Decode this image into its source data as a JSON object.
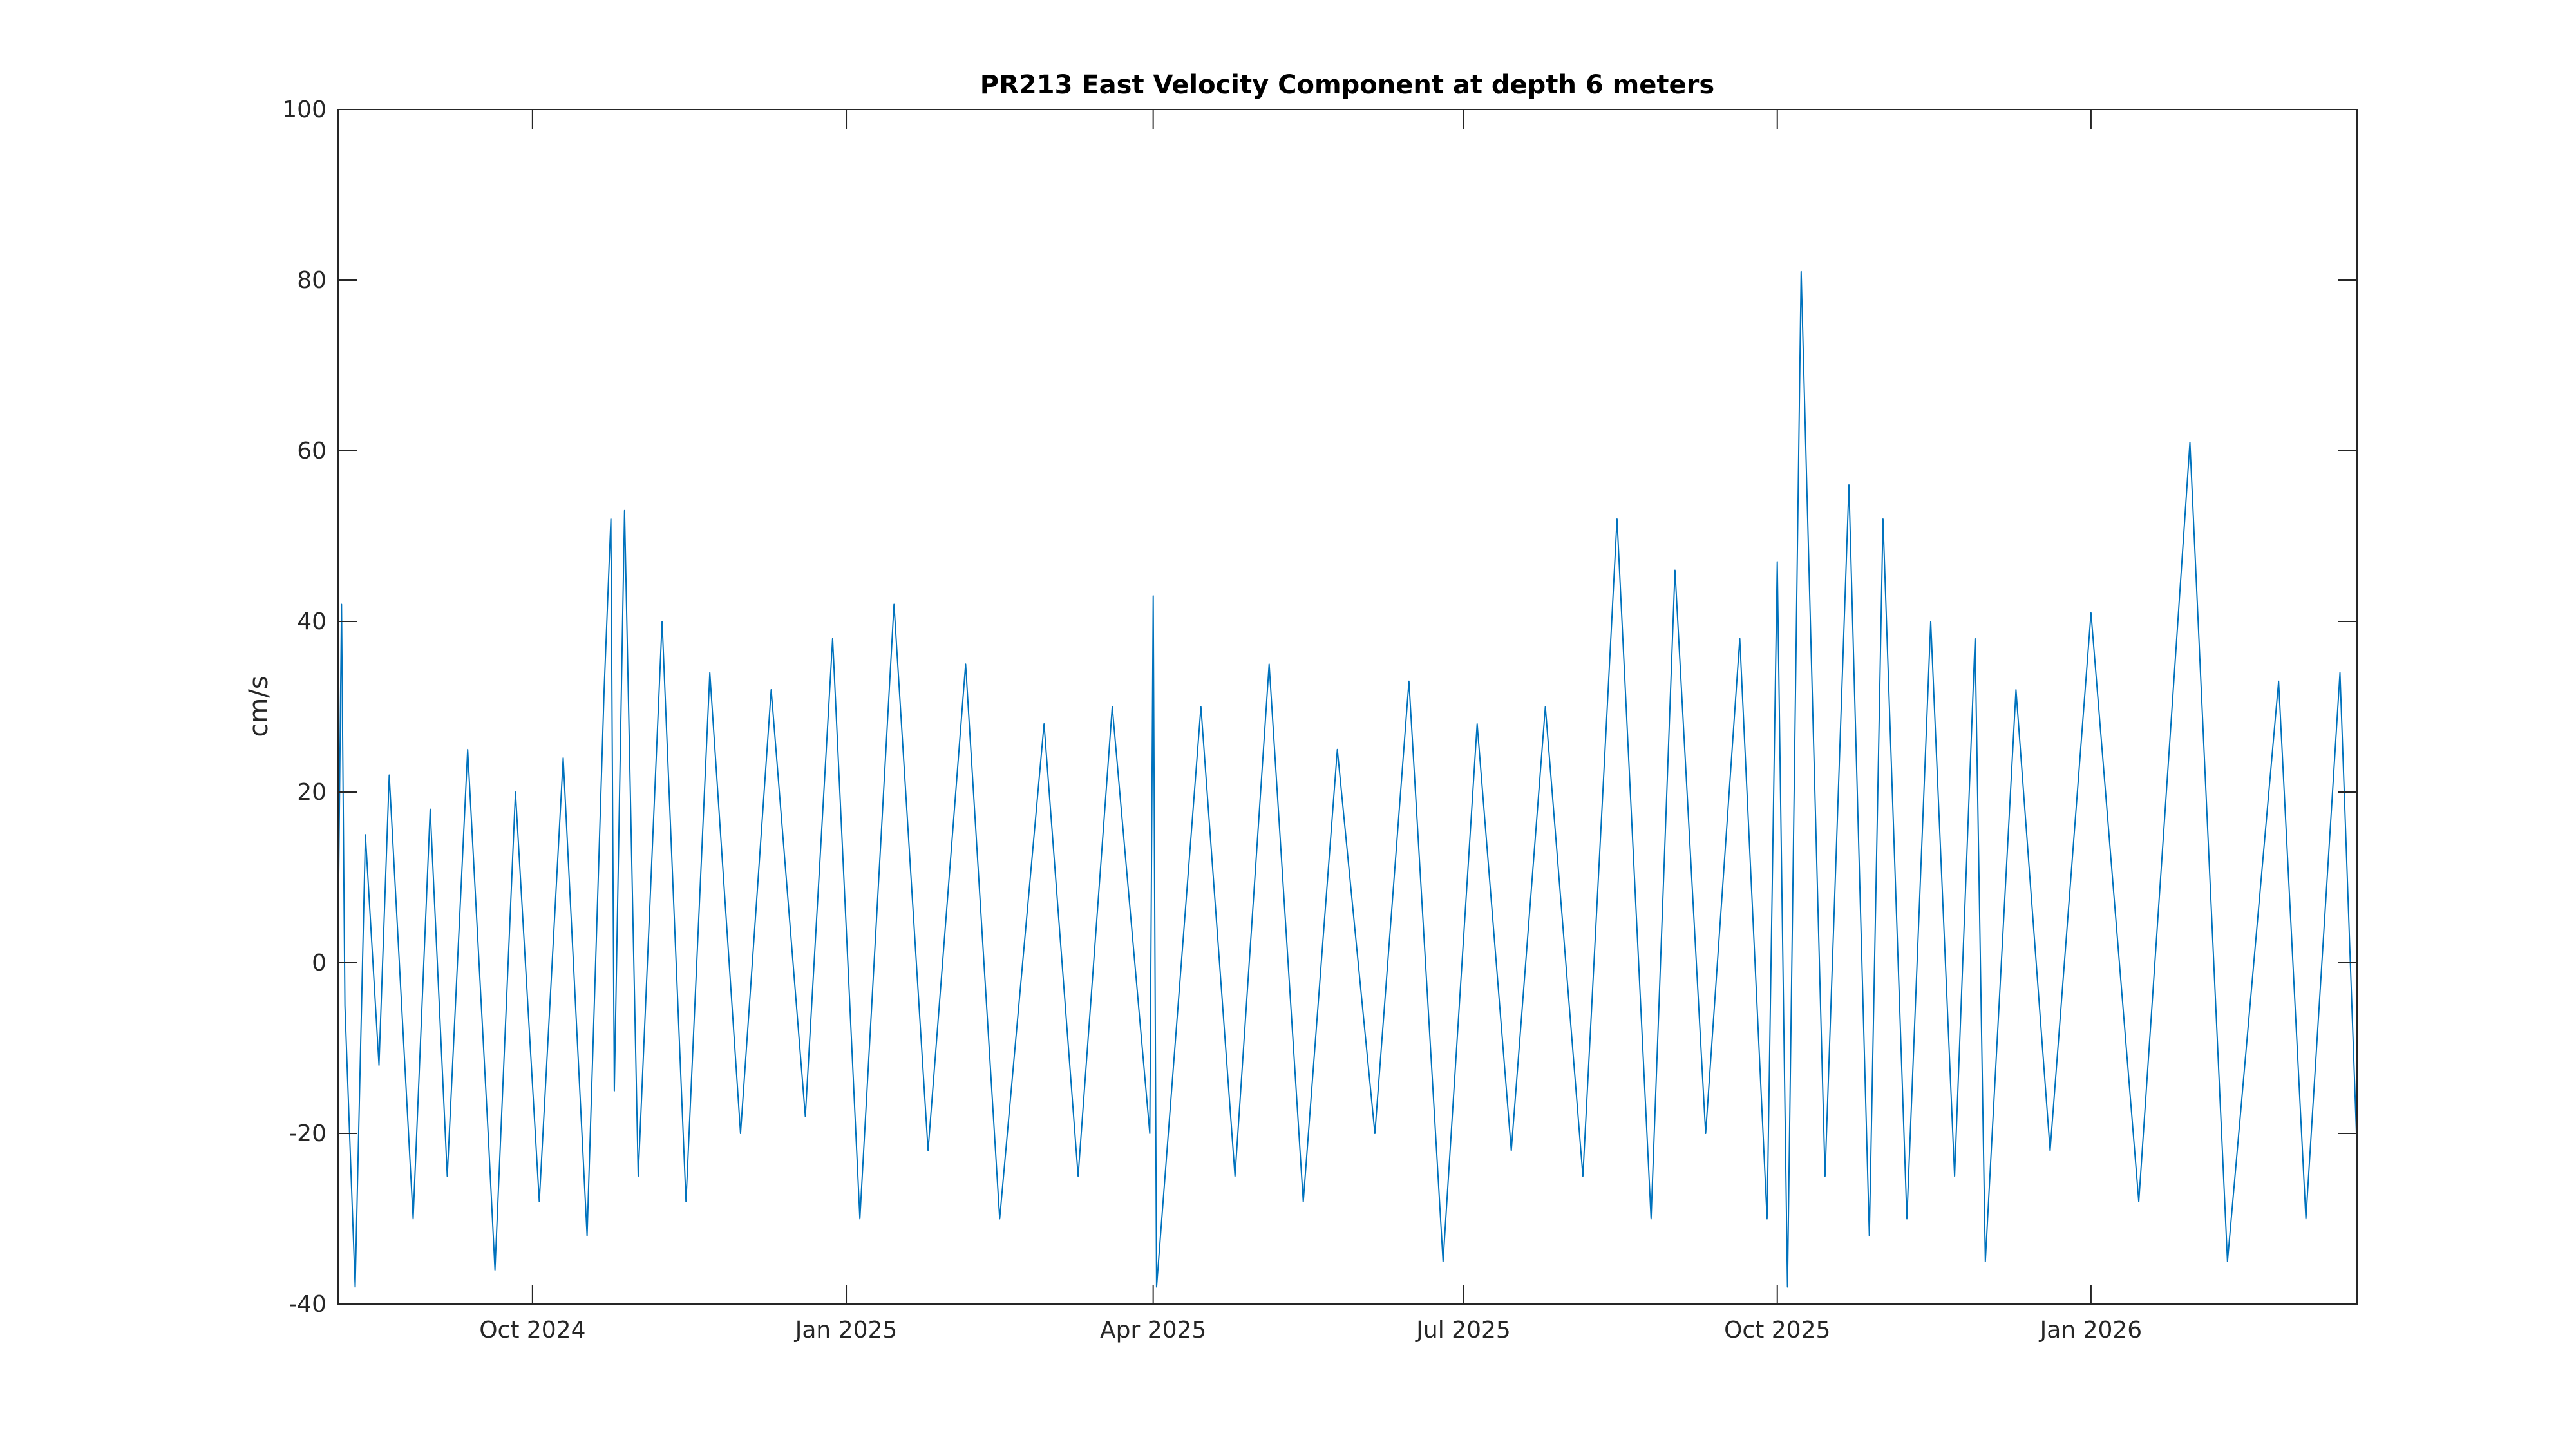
{
  "chart_data": {
    "type": "line",
    "title": "PR213 East Velocity Component at depth 6 meters",
    "xlabel": "",
    "ylabel": "cm/s",
    "x_range": [
      "2024-08-05",
      "2026-03-20"
    ],
    "ylim": [
      -40,
      100
    ],
    "y_ticks": [
      -40,
      -20,
      0,
      20,
      40,
      60,
      80,
      100
    ],
    "y_tick_labels": [
      "-40",
      "-20",
      "0",
      "20",
      "40",
      "60",
      "80",
      "100"
    ],
    "x_ticks": [
      "2024-10-01",
      "2025-01-01",
      "2025-04-01",
      "2025-07-01",
      "2025-10-01",
      "2026-01-01"
    ],
    "x_tick_labels": [
      "Oct 2024",
      "Jan 2025",
      "Apr 2025",
      "Jul 2025",
      "Oct 2025",
      "Jan 2026"
    ],
    "grid": false,
    "line_color": "#0072BD",
    "series": [
      {
        "x": [
          "2024-08-05",
          "2024-08-06",
          "2024-08-07",
          "2024-08-10",
          "2024-08-13",
          "2024-08-17",
          "2024-08-20",
          "2024-08-27",
          "2024-09-01",
          "2024-09-06",
          "2024-09-12",
          "2024-09-18",
          "2024-09-20",
          "2024-09-26",
          "2024-10-03",
          "2024-10-10",
          "2024-10-17",
          "2024-10-22",
          "2024-10-24",
          "2024-10-25",
          "2024-10-28",
          "2024-11-01",
          "2024-11-08",
          "2024-11-15",
          "2024-11-22",
          "2024-12-01",
          "2024-12-10",
          "2024-12-20",
          "2024-12-28",
          "2025-01-05",
          "2025-01-15",
          "2025-01-25",
          "2025-02-05",
          "2025-02-15",
          "2025-02-28",
          "2025-03-10",
          "2025-03-20",
          "2025-03-31",
          "2025-04-01",
          "2025-04-02",
          "2025-04-15",
          "2025-04-25",
          "2025-05-05",
          "2025-05-15",
          "2025-05-25",
          "2025-06-05",
          "2025-06-15",
          "2025-06-25",
          "2025-07-05",
          "2025-07-15",
          "2025-07-25",
          "2025-08-05",
          "2025-08-15",
          "2025-08-25",
          "2025-09-01",
          "2025-09-10",
          "2025-09-20",
          "2025-09-28",
          "2025-10-01",
          "2025-10-04",
          "2025-10-08",
          "2025-10-15",
          "2025-10-22",
          "2025-10-28",
          "2025-11-01",
          "2025-11-08",
          "2025-11-15",
          "2025-11-22",
          "2025-11-28",
          "2025-12-01",
          "2025-12-10",
          "2025-12-20",
          "2026-01-01",
          "2026-01-15",
          "2026-01-30",
          "2026-02-10",
          "2026-02-25",
          "2026-03-05",
          "2026-03-15",
          "2026-03-20"
        ],
        "y": [
          3,
          42,
          -5,
          -38,
          15,
          -12,
          22,
          -30,
          18,
          -25,
          25,
          -20,
          -36,
          20,
          -28,
          24,
          -32,
          32,
          52,
          -15,
          53,
          -25,
          40,
          -28,
          34,
          -20,
          32,
          -18,
          38,
          -30,
          42,
          -22,
          35,
          -30,
          28,
          -25,
          30,
          -20,
          43,
          -38,
          30,
          -25,
          35,
          -28,
          25,
          -20,
          33,
          -35,
          28,
          -22,
          30,
          -25,
          52,
          -30,
          46,
          -20,
          38,
          -30,
          47,
          -38,
          81,
          -25,
          56,
          -32,
          52,
          -30,
          40,
          -25,
          38,
          -35,
          32,
          -22,
          41,
          -28,
          61,
          -35,
          33,
          -30,
          34,
          -22
        ]
      }
    ]
  }
}
